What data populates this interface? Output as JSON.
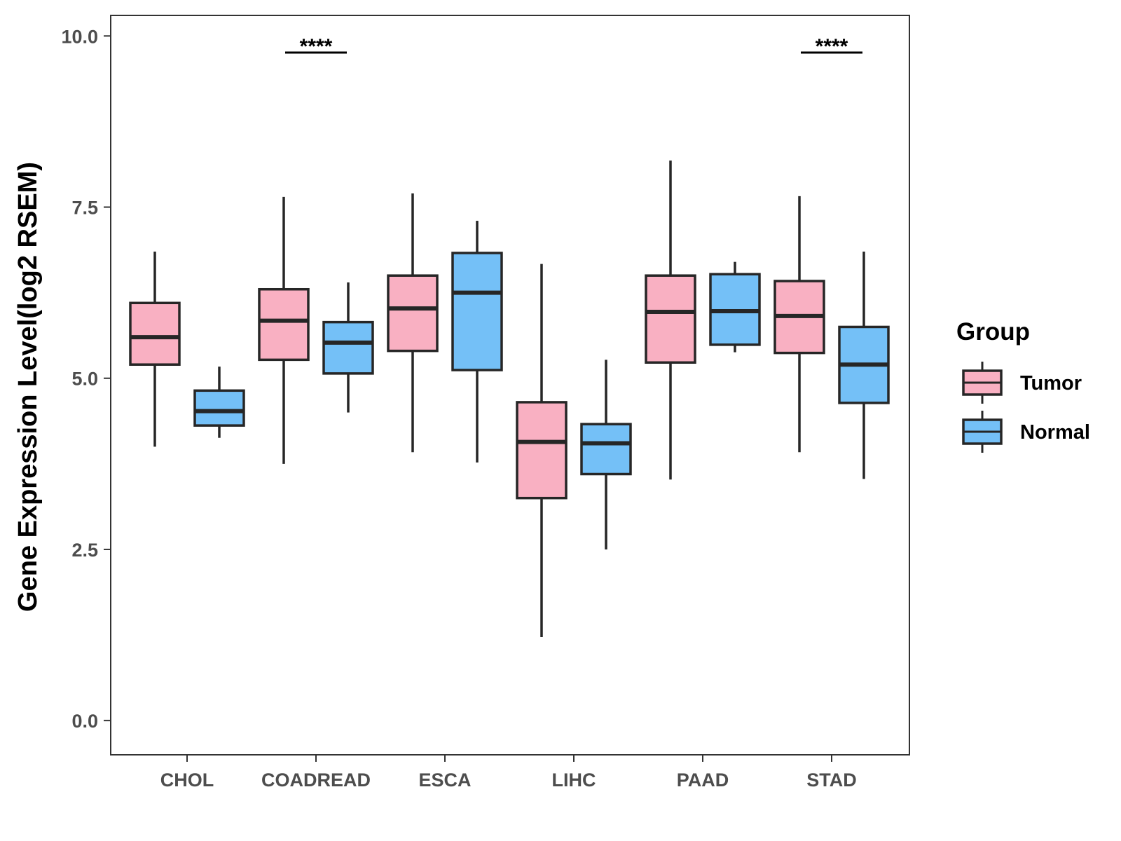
{
  "chart_data": {
    "type": "box",
    "title": "",
    "xlabel": "",
    "ylabel": "Gene Expression Level(log2 RSEM)",
    "ylim": [
      -0.5,
      10.3
    ],
    "yticks": [
      0.0,
      2.5,
      5.0,
      7.5,
      10.0
    ],
    "ytick_labels": [
      "0.0",
      "2.5",
      "5.0",
      "7.5",
      "10.0"
    ],
    "grid": false,
    "categories": [
      "CHOL",
      "COADREAD",
      "ESCA",
      "LIHC",
      "PAAD",
      "STAD"
    ],
    "legend": {
      "title": "Group",
      "position": "right",
      "entries": [
        {
          "name": "Tumor",
          "color": "#f9b0c2"
        },
        {
          "name": "Normal",
          "color": "#74c0f7"
        }
      ]
    },
    "series": [
      {
        "name": "Tumor",
        "color": "#f9b0c2",
        "boxes": [
          {
            "category": "CHOL",
            "min": 4.0,
            "q1": 5.2,
            "median": 5.6,
            "q3": 6.1,
            "max": 6.85
          },
          {
            "category": "COADREAD",
            "min": 3.75,
            "q1": 5.27,
            "median": 5.84,
            "q3": 6.3,
            "max": 7.65
          },
          {
            "category": "ESCA",
            "min": 3.92,
            "q1": 5.4,
            "median": 6.02,
            "q3": 6.5,
            "max": 7.7
          },
          {
            "category": "LIHC",
            "min": 1.22,
            "q1": 3.25,
            "median": 4.07,
            "q3": 4.65,
            "max": 6.67
          },
          {
            "category": "PAAD",
            "min": 3.52,
            "q1": 5.23,
            "median": 5.97,
            "q3": 6.5,
            "max": 8.18
          },
          {
            "category": "STAD",
            "min": 3.92,
            "q1": 5.37,
            "median": 5.91,
            "q3": 6.42,
            "max": 7.66
          }
        ]
      },
      {
        "name": "Normal",
        "color": "#74c0f7",
        "boxes": [
          {
            "category": "CHOL",
            "min": 4.13,
            "q1": 4.31,
            "median": 4.52,
            "q3": 4.82,
            "max": 5.17
          },
          {
            "category": "COADREAD",
            "min": 4.5,
            "q1": 5.07,
            "median": 5.52,
            "q3": 5.82,
            "max": 6.4
          },
          {
            "category": "ESCA",
            "min": 3.77,
            "q1": 5.12,
            "median": 6.25,
            "q3": 6.83,
            "max": 7.3
          },
          {
            "category": "LIHC",
            "min": 2.5,
            "q1": 3.6,
            "median": 4.05,
            "q3": 4.33,
            "max": 5.27
          },
          {
            "category": "PAAD",
            "min": 5.38,
            "q1": 5.49,
            "median": 5.98,
            "q3": 6.52,
            "max": 6.7
          },
          {
            "category": "STAD",
            "min": 3.53,
            "q1": 4.64,
            "median": 5.2,
            "q3": 5.75,
            "max": 6.85
          }
        ]
      }
    ],
    "annotations": [
      {
        "category": "COADREAD",
        "text": "****"
      },
      {
        "category": "STAD",
        "text": "****"
      }
    ]
  }
}
